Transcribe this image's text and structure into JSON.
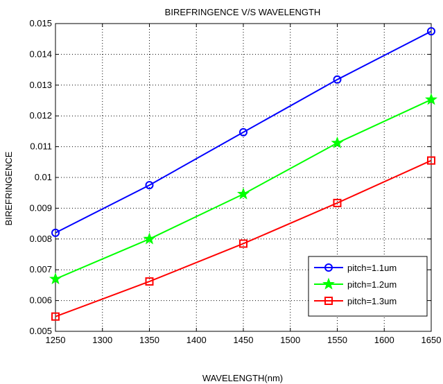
{
  "chart_data": {
    "type": "line",
    "title": "BIREFRINGENCE V/S WAVELENGTH",
    "xlabel": "WAVELENGTH(nm)",
    "ylabel": "BIREFRINGENCE",
    "xlim": [
      1250,
      1650
    ],
    "ylim": [
      0.005,
      0.015
    ],
    "xticks": [
      1250,
      1300,
      1350,
      1400,
      1450,
      1500,
      1550,
      1600,
      1650
    ],
    "xtick_labels": [
      "1250",
      "1300",
      "1350",
      "1400",
      "1450",
      "1500",
      "1550",
      "1600",
      "1650"
    ],
    "yticks": [
      0.005,
      0.006,
      0.007,
      0.008,
      0.009,
      0.01,
      0.011,
      0.012,
      0.013,
      0.014,
      0.015
    ],
    "ytick_labels": [
      "0.005",
      "0.006",
      "0.007",
      "0.008",
      "0.009",
      "0.01",
      "0.011",
      "0.012",
      "0.013",
      "0.014",
      "0.015"
    ],
    "grid": true,
    "legend_position": "bottom-right",
    "x": [
      1250,
      1350,
      1450,
      1550,
      1650
    ],
    "series": [
      {
        "name": "pitch=1.1um",
        "values": [
          0.0082,
          0.00975,
          0.01147,
          0.01318,
          0.01475
        ],
        "color": "#0000ff",
        "marker": "circle"
      },
      {
        "name": "pitch=1.2um",
        "values": [
          0.0067,
          0.008,
          0.00946,
          0.01112,
          0.01253
        ],
        "color": "#00ff00",
        "marker": "star"
      },
      {
        "name": "pitch=1.3um",
        "values": [
          0.00548,
          0.00662,
          0.00785,
          0.00917,
          0.01055
        ],
        "color": "#ff0000",
        "marker": "square"
      }
    ]
  }
}
